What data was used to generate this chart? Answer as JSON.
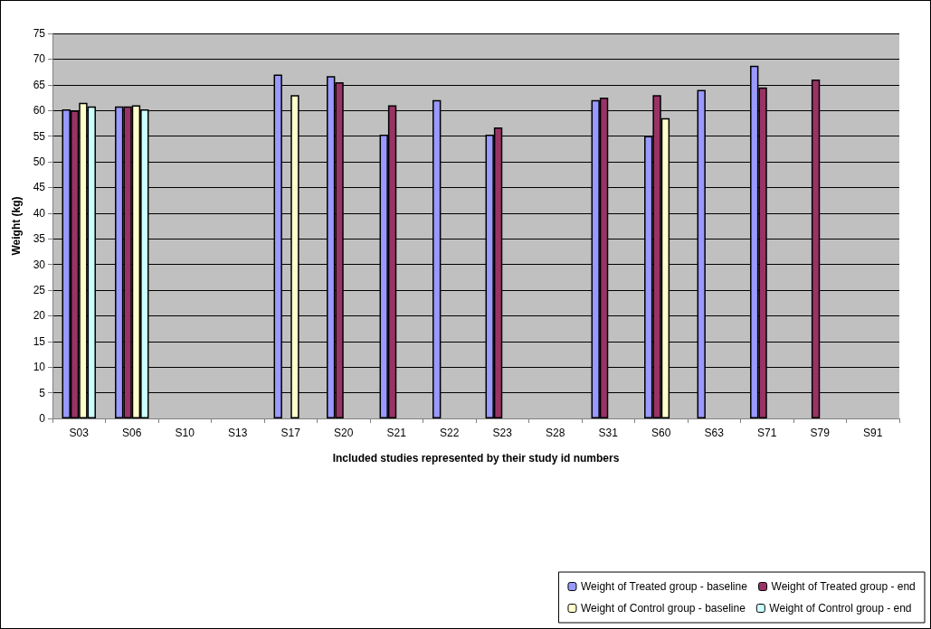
{
  "chart_data": {
    "type": "bar",
    "xlabel": "Included studies represented by their study id numbers",
    "ylabel": "Weight (kg)",
    "categories": [
      "S03",
      "S06",
      "S10",
      "S13",
      "S17",
      "S20",
      "S21",
      "S22",
      "S23",
      "S28",
      "S31",
      "S60",
      "S63",
      "S71",
      "S79",
      "S91"
    ],
    "series": [
      {
        "name": "Weight of Treated group - baseline",
        "color": "#9999ff",
        "values": [
          60.2,
          60.8,
          null,
          null,
          67,
          66.7,
          55.3,
          62,
          55.3,
          null,
          62,
          55,
          64,
          68.7,
          null,
          null
        ]
      },
      {
        "name": "Weight of Treated group - end",
        "color": "#993366",
        "values": [
          60,
          60.8,
          null,
          null,
          null,
          65.5,
          61,
          null,
          56.7,
          null,
          62.5,
          63,
          null,
          64.5,
          66,
          null
        ]
      },
      {
        "name": "Weight of Control group - baseline",
        "color": "#ffffcc",
        "values": [
          61.5,
          61,
          null,
          null,
          63,
          null,
          null,
          null,
          null,
          null,
          null,
          58.5,
          null,
          null,
          null,
          null
        ]
      },
      {
        "name": "Weight of Control group - end",
        "color": "#ccffff",
        "values": [
          60.8,
          60.2,
          null,
          null,
          null,
          null,
          null,
          null,
          null,
          null,
          null,
          null,
          null,
          null,
          null,
          null
        ]
      }
    ],
    "ylim": [
      0,
      75
    ],
    "yticks": [
      0,
      5,
      10,
      15,
      20,
      25,
      30,
      35,
      40,
      45,
      50,
      55,
      60,
      65,
      70,
      75
    ],
    "grid": "y",
    "legend": "bottom right"
  }
}
